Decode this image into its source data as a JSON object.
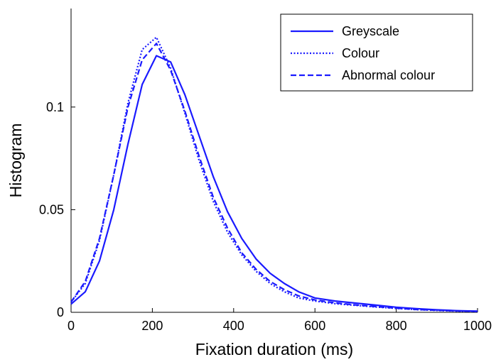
{
  "chart_data": {
    "type": "line",
    "title": "",
    "xlabel": "Fixation duration (ms)",
    "ylabel": "Histogram",
    "xlim": [
      0,
      1000
    ],
    "ylim": [
      0,
      0.148
    ],
    "xticks": [
      0,
      200,
      400,
      600,
      800,
      1000
    ],
    "xtick_labels": [
      "0",
      "200",
      "400",
      "600",
      "800",
      "1000"
    ],
    "yticks": [
      0,
      0.05,
      0.1
    ],
    "ytick_labels": [
      "0",
      "0.05",
      "0.1"
    ],
    "grid": false,
    "legend_position": "top-right",
    "line_color": "#1a1aff",
    "series": [
      {
        "name": "Greyscale",
        "style": "solid",
        "x": [
          0,
          35,
          70,
          105,
          140,
          175,
          210,
          245,
          280,
          315,
          350,
          385,
          420,
          455,
          490,
          525,
          560,
          600,
          650,
          700,
          750,
          800,
          850,
          900,
          950,
          1000
        ],
        "y": [
          0.004,
          0.01,
          0.025,
          0.05,
          0.082,
          0.111,
          0.125,
          0.122,
          0.106,
          0.086,
          0.066,
          0.049,
          0.036,
          0.026,
          0.019,
          0.014,
          0.01,
          0.007,
          0.0055,
          0.0045,
          0.0035,
          0.0025,
          0.0018,
          0.0012,
          0.0008,
          0.0006
        ]
      },
      {
        "name": "Colour",
        "style": "dotted",
        "x": [
          0,
          35,
          70,
          105,
          140,
          175,
          210,
          245,
          280,
          315,
          350,
          385,
          420,
          455,
          490,
          525,
          560,
          600,
          650,
          700,
          750,
          800,
          850,
          900,
          950,
          1000
        ],
        "y": [
          0.005,
          0.014,
          0.035,
          0.067,
          0.102,
          0.128,
          0.134,
          0.119,
          0.097,
          0.074,
          0.054,
          0.039,
          0.028,
          0.02,
          0.014,
          0.01,
          0.007,
          0.0055,
          0.0042,
          0.0034,
          0.0026,
          0.0019,
          0.0013,
          0.0009,
          0.0006,
          0.0004
        ]
      },
      {
        "name": "Abnormal colour",
        "style": "dashed",
        "x": [
          0,
          35,
          70,
          105,
          140,
          175,
          210,
          245,
          280,
          315,
          350,
          385,
          420,
          455,
          490,
          525,
          560,
          600,
          650,
          700,
          750,
          800,
          850,
          900,
          950,
          1000
        ],
        "y": [
          0.005,
          0.015,
          0.036,
          0.067,
          0.1,
          0.123,
          0.131,
          0.118,
          0.098,
          0.076,
          0.056,
          0.041,
          0.029,
          0.021,
          0.015,
          0.011,
          0.008,
          0.006,
          0.0046,
          0.0036,
          0.0028,
          0.002,
          0.0014,
          0.001,
          0.0007,
          0.0005
        ]
      }
    ]
  }
}
